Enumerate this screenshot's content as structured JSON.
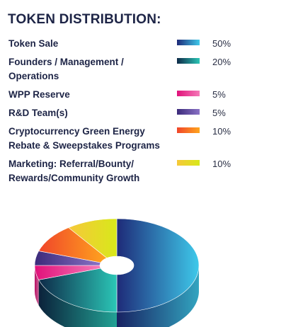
{
  "chart_data": {
    "type": "pie",
    "title": "TOKEN DISTRIBUTION:",
    "style": "3d-donut",
    "slices": [
      {
        "label": "Token Sale",
        "value": 50,
        "display": "50%",
        "color_a": "#1e2a78",
        "color_b": "#3ec9ea"
      },
      {
        "label": "Founders / Management / Operations",
        "label_lines": [
          "Founders / Management /",
          "Operations"
        ],
        "value": 20,
        "display": "20%",
        "color_a": "#0e2a48",
        "color_b": "#2bc6b6"
      },
      {
        "label": "WPP Reserve",
        "value": 5,
        "display": "5%",
        "color_a": "#e0117a",
        "color_b": "#f57ab8"
      },
      {
        "label": "R&D Team(s)",
        "value": 5,
        "display": "5%",
        "color_a": "#3b2a7a",
        "color_b": "#8a72c6"
      },
      {
        "label": "Cryptocurrency Green Energy Rebate & Sweepstakes Programs",
        "label_lines": [
          "Cryptocurrency Green Energy",
          "Rebate & Sweepstakes Programs"
        ],
        "value": 10,
        "display": "10%",
        "color_a": "#f0452a",
        "color_b": "#ffa51e"
      },
      {
        "label": "Marketing: Referral/Bounty/ Rewards/Community Growth",
        "label_lines": [
          "Marketing: Referral/Bounty/",
          "Rewards/Community Growth"
        ],
        "value": 10,
        "display": "10%",
        "color_a": "#f6c83a",
        "color_b": "#d8e81a"
      }
    ],
    "legend": "top"
  }
}
